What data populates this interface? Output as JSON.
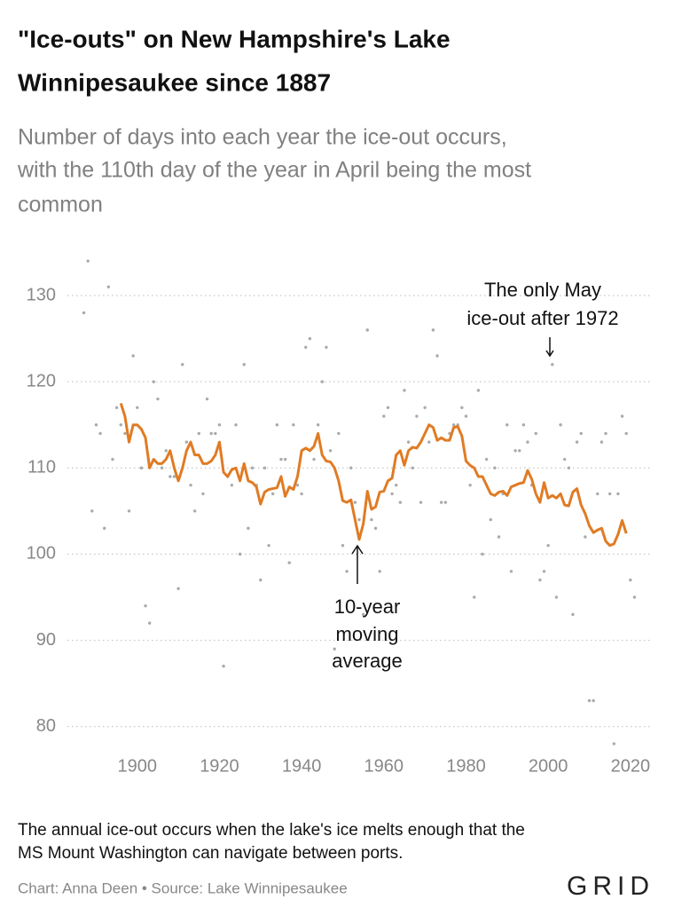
{
  "title": [
    "\"Ice-outs\" on New Hampshire's Lake",
    "Winnipesaukee since 1887"
  ],
  "subtitle": [
    "Number of days into each year the ice-out occurs,",
    "with the 110th day of the year in April being the most",
    "common"
  ],
  "chart_data": {
    "type": "scatter",
    "xlim": [
      1883,
      2025
    ],
    "ylim": [
      76.5,
      135.5
    ],
    "xticks": [
      1900,
      1920,
      1940,
      1960,
      1980,
      2000,
      2020
    ],
    "yticks": [
      80,
      90,
      100,
      110,
      120,
      130
    ],
    "grid": true,
    "annotations": [
      {
        "lines": [
          "The only May",
          "ice-out after 1972"
        ]
      },
      {
        "lines": [
          "10-year",
          "moving",
          "average"
        ]
      }
    ],
    "series": [
      {
        "type": "scatter",
        "color": "#aaaaaa",
        "x": [
          1887,
          1888,
          1889,
          1890,
          1891,
          1892,
          1893,
          1894,
          1895,
          1896,
          1897,
          1898,
          1899,
          1900,
          1901,
          1902,
          1903,
          1904,
          1905,
          1906,
          1907,
          1908,
          1909,
          1910,
          1911,
          1912,
          1913,
          1914,
          1915,
          1916,
          1917,
          1918,
          1919,
          1920,
          1921,
          1922,
          1923,
          1924,
          1925,
          1926,
          1927,
          1928,
          1929,
          1930,
          1931,
          1932,
          1933,
          1934,
          1935,
          1936,
          1937,
          1938,
          1939,
          1940,
          1941,
          1942,
          1943,
          1944,
          1945,
          1946,
          1947,
          1948,
          1949,
          1950,
          1951,
          1952,
          1953,
          1954,
          1955,
          1956,
          1957,
          1958,
          1959,
          1960,
          1961,
          1962,
          1963,
          1964,
          1965,
          1966,
          1967,
          1968,
          1969,
          1970,
          1971,
          1972,
          1973,
          1974,
          1975,
          1976,
          1977,
          1978,
          1979,
          1980,
          1981,
          1982,
          1983,
          1984,
          1985,
          1986,
          1987,
          1988,
          1989,
          1990,
          1991,
          1992,
          1993,
          1994,
          1995,
          1996,
          1997,
          1998,
          1999,
          2000,
          2001,
          2002,
          2003,
          2004,
          2005,
          2006,
          2007,
          2008,
          2009,
          2010,
          2011,
          2012,
          2013,
          2014,
          2015,
          2016,
          2017,
          2018,
          2019,
          2020,
          2021
        ],
        "values": [
          128,
          134,
          105,
          115,
          114,
          103,
          131,
          111,
          117,
          115,
          114,
          105,
          123,
          117,
          110,
          94,
          92,
          120,
          118,
          110,
          112,
          109,
          109,
          96,
          122,
          113,
          108,
          105,
          114,
          107,
          118,
          114,
          114,
          115,
          87,
          109,
          108,
          115,
          100,
          122,
          103,
          110,
          108,
          97,
          110,
          101,
          107,
          115,
          111,
          111,
          99,
          115,
          108,
          107,
          124,
          125,
          111,
          115,
          120,
          124,
          112,
          89,
          114,
          101,
          98,
          110,
          106,
          104,
          93,
          126,
          104,
          103,
          98,
          116,
          117,
          107,
          108,
          106,
          119,
          113,
          110,
          116,
          106,
          117,
          113,
          126,
          123,
          106,
          106,
          114,
          115,
          115,
          117,
          116,
          108,
          95,
          119,
          100,
          111,
          104,
          110,
          102,
          107,
          115,
          98,
          112,
          112,
          115,
          113,
          108,
          114,
          97,
          98,
          101,
          122,
          95,
          115,
          111,
          110,
          93,
          113,
          114,
          102,
          83,
          83,
          107,
          113,
          114,
          107,
          78,
          107,
          116,
          114,
          97,
          95
        ]
      },
      {
        "type": "line",
        "color": "#e07b24",
        "x": [
          1896,
          1897,
          1898,
          1899,
          1900,
          1901,
          1902,
          1903,
          1904,
          1905,
          1906,
          1907,
          1908,
          1909,
          1910,
          1911,
          1912,
          1913,
          1914,
          1915,
          1916,
          1917,
          1918,
          1919,
          1920,
          1921,
          1922,
          1923,
          1924,
          1925,
          1926,
          1927,
          1928,
          1929,
          1930,
          1931,
          1932,
          1933,
          1934,
          1935,
          1936,
          1937,
          1938,
          1939,
          1940,
          1941,
          1942,
          1943,
          1944,
          1945,
          1946,
          1947,
          1948,
          1949,
          1950,
          1951,
          1952,
          1953,
          1954,
          1955,
          1956,
          1957,
          1958,
          1959,
          1960,
          1961,
          1962,
          1963,
          1964,
          1965,
          1966,
          1967,
          1968,
          1969,
          1970,
          1971,
          1972,
          1973,
          1974,
          1975,
          1976,
          1977,
          1978,
          1979,
          1980,
          1981,
          1982,
          1983,
          1984,
          1985,
          1986,
          1987,
          1988,
          1989,
          1990,
          1991,
          1992,
          1993,
          1994,
          1995,
          1996,
          1997,
          1998,
          1999,
          2000,
          2001,
          2002,
          2003,
          2004,
          2005,
          2006,
          2007,
          2008,
          2009,
          2010,
          2011,
          2012,
          2013,
          2014,
          2015,
          2016,
          2017,
          2018,
          2019
        ],
        "values": [
          117.5,
          116,
          113,
          115,
          115,
          114.5,
          113.5,
          110,
          111,
          110.5,
          110.5,
          111,
          112,
          110,
          108.5,
          110,
          112,
          113,
          111.5,
          111.5,
          110.5,
          110.5,
          110.8,
          111.5,
          113,
          109.5,
          109,
          109.8,
          110,
          108.5,
          110.5,
          108.5,
          108.3,
          107.8,
          105.8,
          107.2,
          107.5,
          107.6,
          107.7,
          109,
          106.7,
          107.8,
          107.5,
          109,
          112,
          112.3,
          112,
          112.5,
          114,
          111.5,
          110.8,
          110.7,
          110,
          108.5,
          106.2,
          106,
          106.3,
          104,
          101.7,
          103.5,
          107.3,
          105.2,
          105.5,
          107.2,
          107.3,
          108.5,
          108.8,
          111.5,
          112,
          110.3,
          112,
          112.4,
          112.3,
          113,
          114,
          115,
          114.7,
          113.2,
          113.5,
          113.2,
          113.2,
          114.7,
          114.8,
          113.7,
          110.8,
          110.3,
          110,
          109,
          109,
          108,
          107,
          106.8,
          107.2,
          107.3,
          106.8,
          107.8,
          108,
          108.2,
          108.3,
          109.7,
          108.7,
          107,
          106,
          108.3,
          106.5,
          106.8,
          106.5,
          107,
          105.7,
          105.6,
          107.2,
          107.6,
          105.7,
          104.7,
          103.3,
          102.5,
          102.8,
          103,
          101.5,
          101,
          101.2,
          102.3,
          103.9,
          102.4
        ]
      }
    ]
  },
  "note": [
    "The annual ice-out occurs when the lake's ice melts enough that the",
    "MS Mount Washington can navigate between ports."
  ],
  "credit": "Chart: Anna Deen • Source: Lake Winnipesaukee",
  "logo": "GRID"
}
